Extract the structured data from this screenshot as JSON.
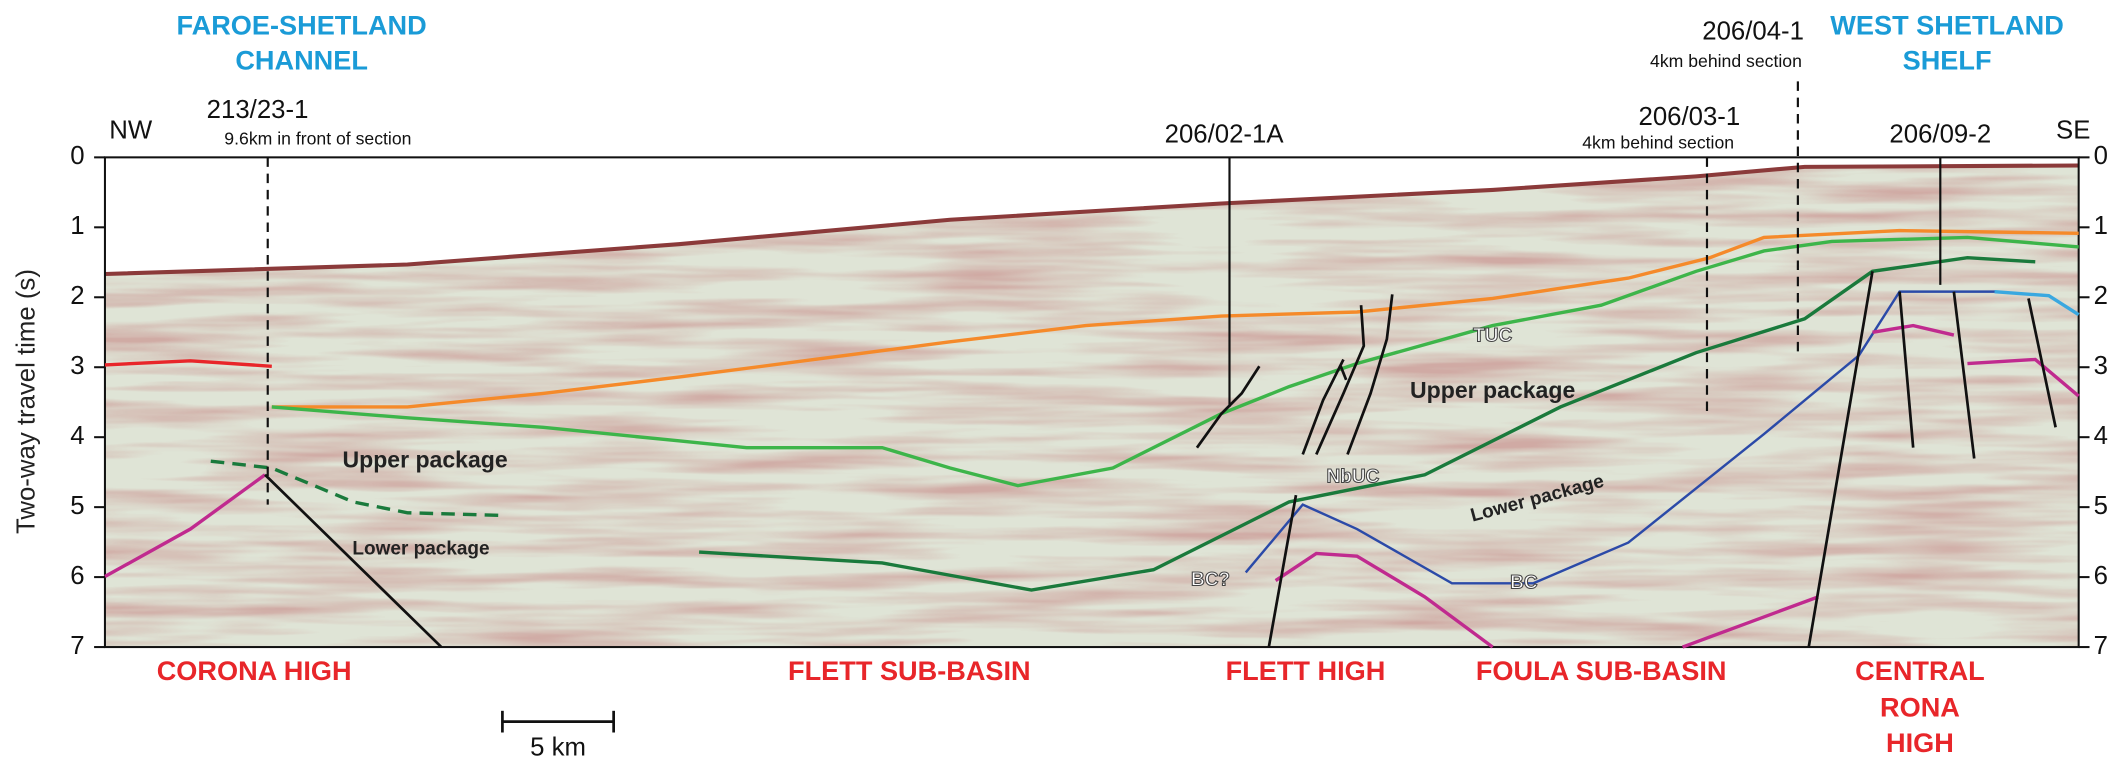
{
  "header": {
    "left_region": [
      "FAROE-SHETLAND",
      "CHANNEL"
    ],
    "right_region": [
      "WEST SHETLAND",
      "SHELF"
    ],
    "left_direction": "NW",
    "right_direction": "SE"
  },
  "wells": [
    {
      "name": "213/23-1",
      "note": "9.6km in front of section"
    },
    {
      "name": "206/02-1A"
    },
    {
      "name": "206/03-1",
      "note": "4km behind section"
    },
    {
      "name": "206/04-1",
      "note": "4km behind section"
    },
    {
      "name": "206/09-2"
    }
  ],
  "axis": {
    "label": "Two-way travel time (s)",
    "ticks": [
      0,
      1,
      2,
      3,
      4,
      5,
      6,
      7
    ]
  },
  "labels": [
    "Upper package",
    "Lower package",
    "Upper package",
    "Lower package",
    "TUC",
    "NbUC",
    "BC?",
    "BC"
  ],
  "structures": [
    [
      "CORONA HIGH"
    ],
    [
      "FLETT SUB-BASIN"
    ],
    [
      "FLETT HIGH"
    ],
    [
      "FOULA SUB-BASIN"
    ],
    [
      "CENTRAL",
      "RONA",
      "HIGH"
    ]
  ],
  "scale_bar": "5 km"
}
